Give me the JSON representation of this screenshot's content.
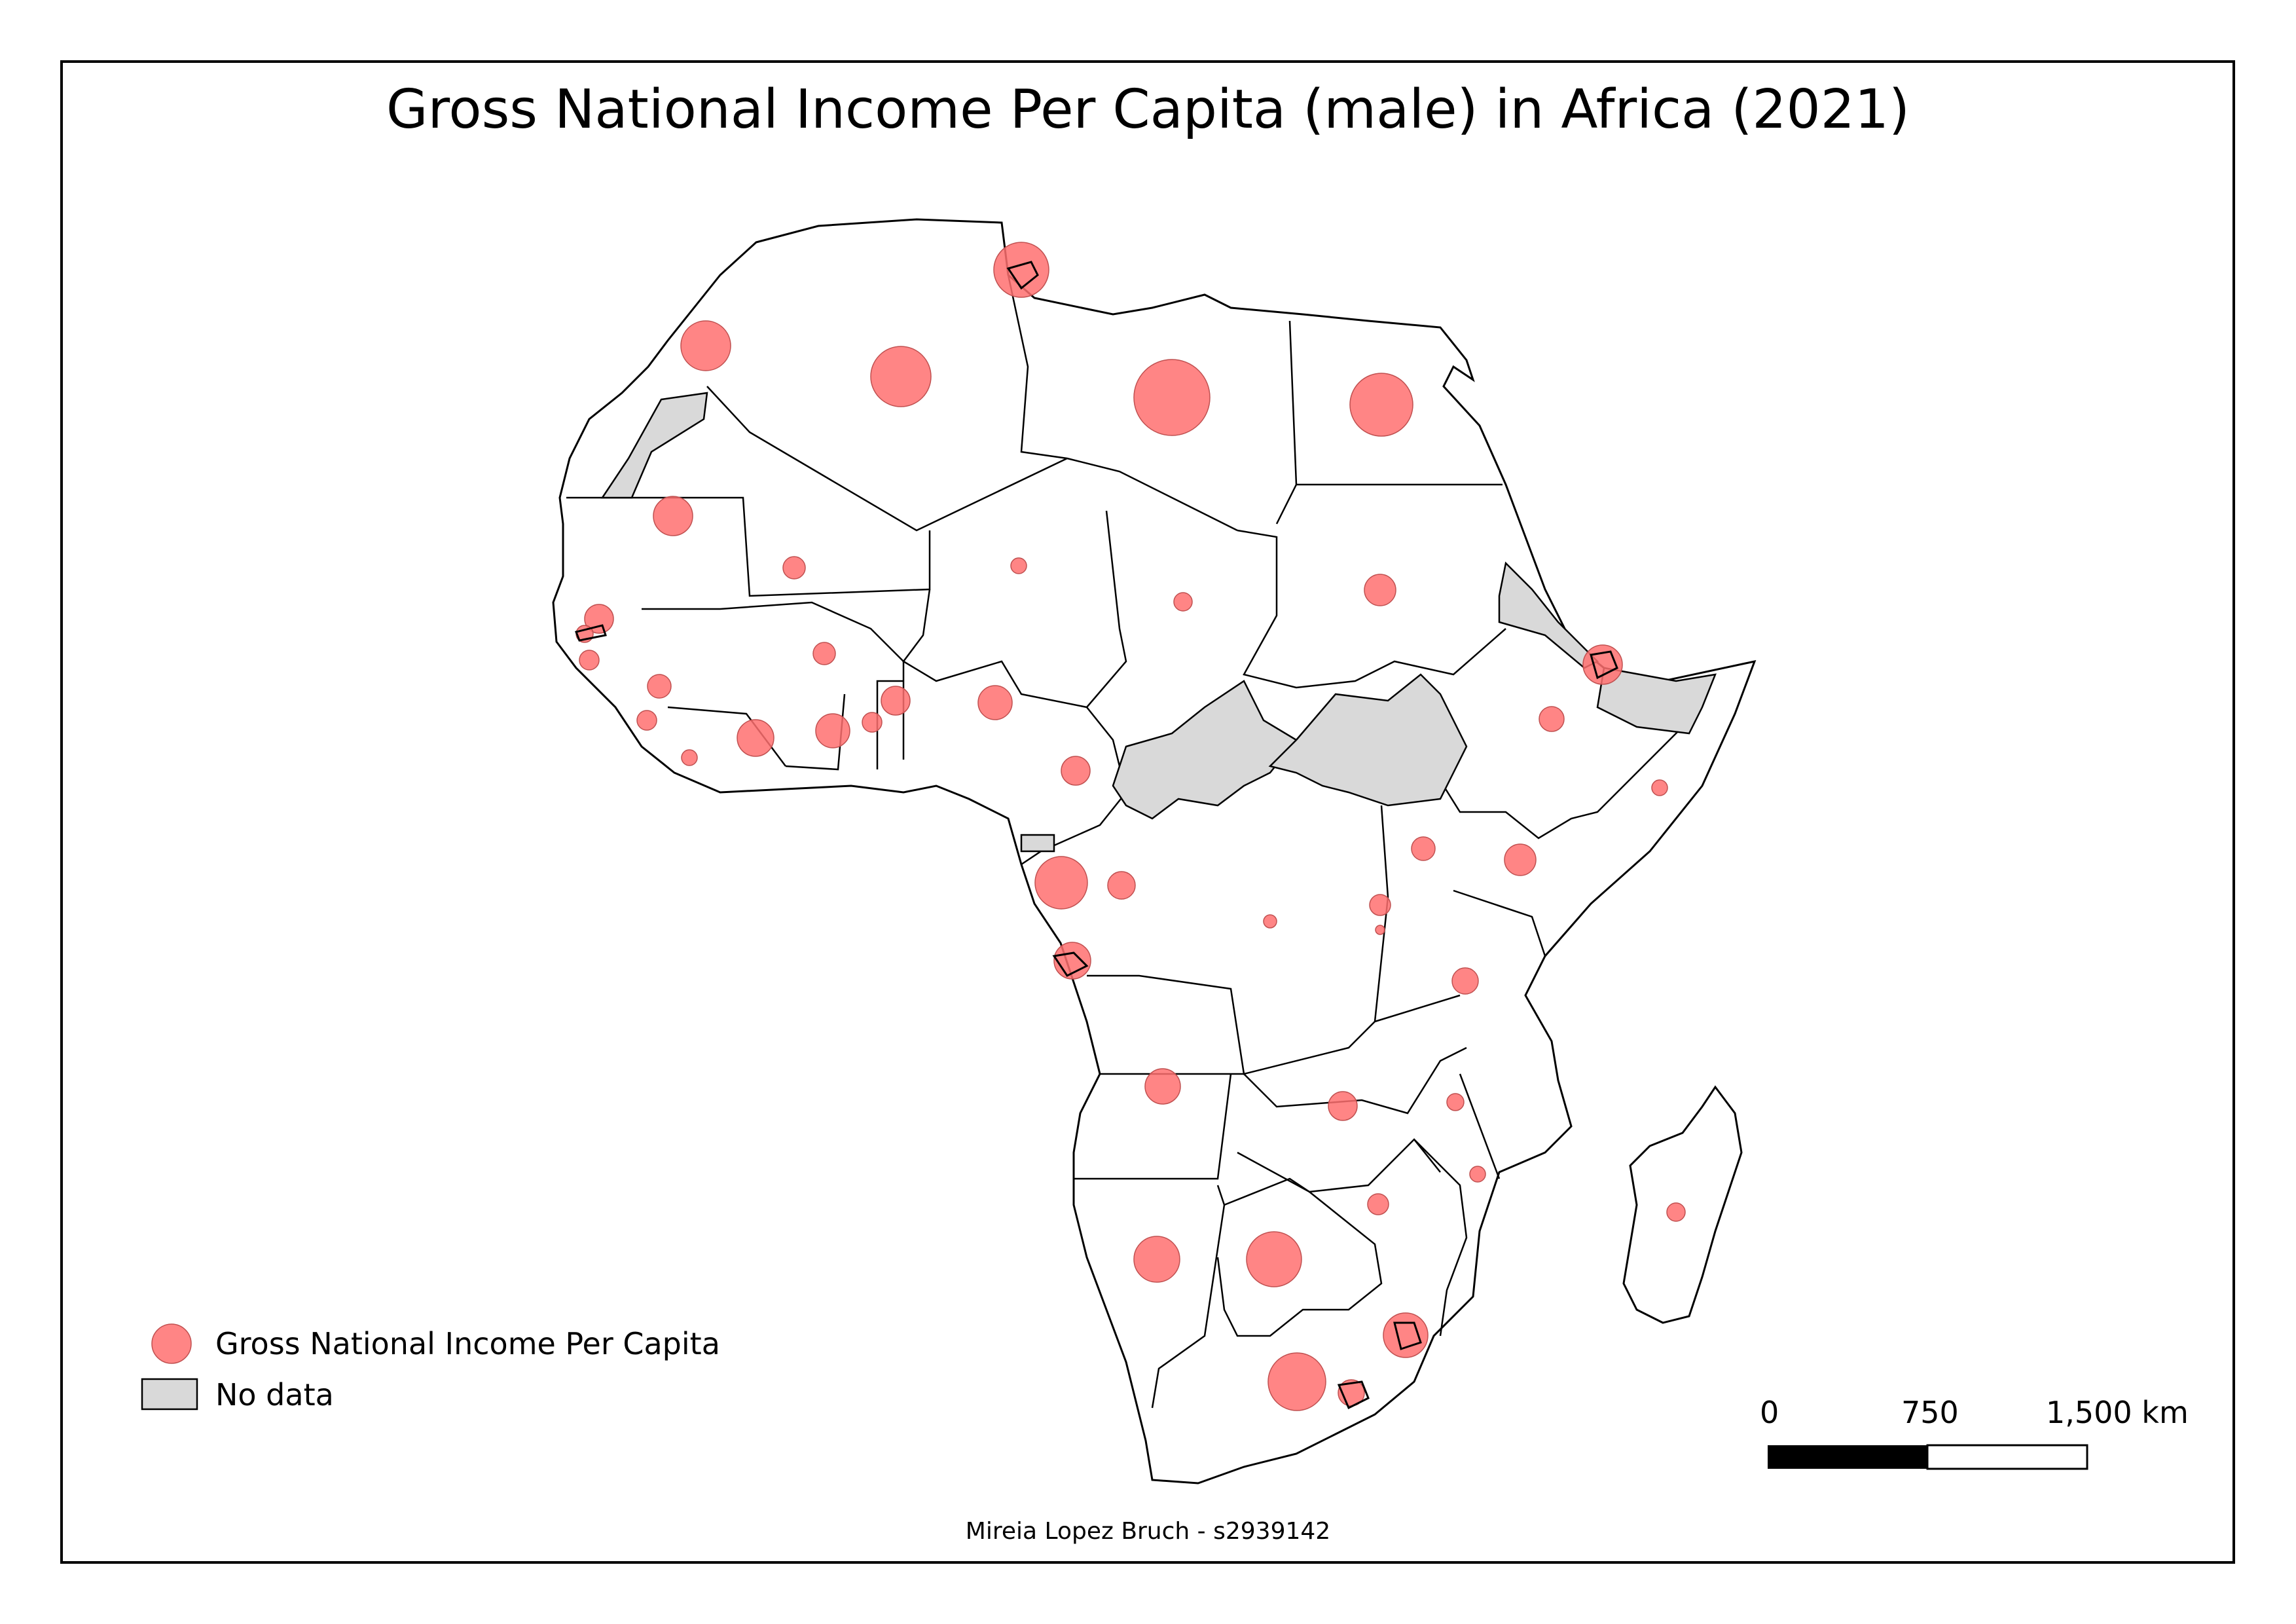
{
  "title": "Gross National Income Per Capita (male) in Africa (2021)",
  "credit": "Mireia Lopez Bruch - s2939142",
  "legend": {
    "symbol_label": "Gross National Income Per Capita",
    "nodata_label": "No data"
  },
  "scalebar": {
    "labels": [
      "0",
      "750",
      "1,500 km"
    ]
  },
  "colors": {
    "symbol_fill": "#ff7070",
    "nodata_fill": "#d9d9d9",
    "land_fill": "#ffffff",
    "border": "#000000"
  }
}
